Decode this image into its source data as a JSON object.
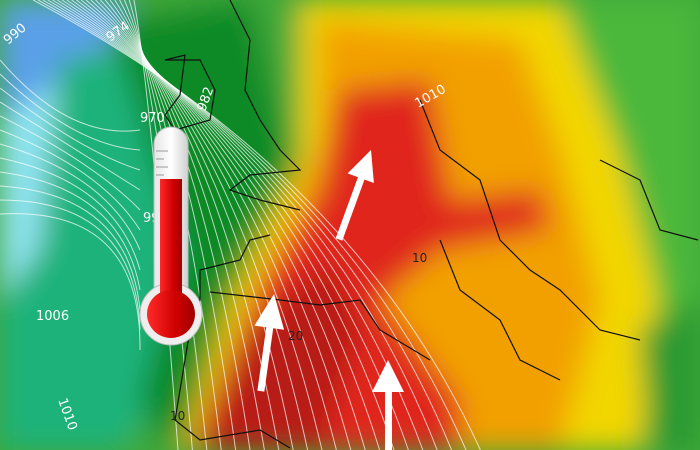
{
  "map": {
    "isobar_labels": [
      "990",
      "974",
      "970",
      "982",
      "99",
      "1006",
      "1010",
      "1010"
    ],
    "temperature_labels": [
      "10",
      "20",
      "10"
    ],
    "colors": {
      "cold_blue": "#5aa0e8",
      "cyan": "#8fe3f0",
      "teal": "#1fb27a",
      "green": "#1a8a2a",
      "light_green": "#5cc23a",
      "yellow": "#f2d600",
      "orange": "#f2a000",
      "red": "#e0281c",
      "dark_red": "#b81a14"
    },
    "icons": [
      "thermometer-icon",
      "wind-arrow-icon"
    ]
  }
}
